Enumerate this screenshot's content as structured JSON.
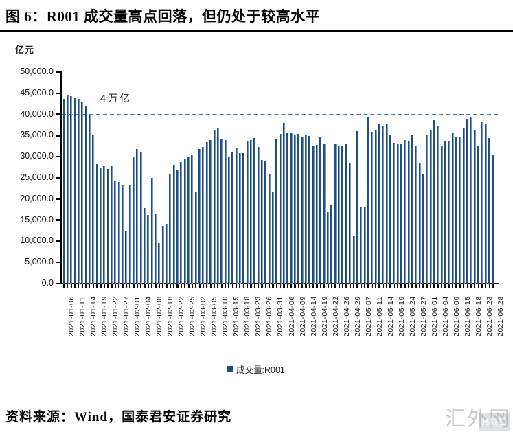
{
  "title": "图 6：R001 成交量高点回落，但仍处于较高水平",
  "footer": {
    "source": "资料来源：Wind，国泰君安证券研究"
  },
  "watermark": {
    "text": "汇外网",
    "logo_text": "格隆汇"
  },
  "legend": {
    "label": "成交量:R001"
  },
  "chart_data": {
    "type": "bar",
    "title": "R001 成交量高点回落，但仍处于较高水平",
    "unit_label": "亿元",
    "ylabel": "亿元",
    "xlabel": "",
    "ylim": [
      0,
      50000
    ],
    "ytick_step": 5000,
    "ytick_labels": [
      "0.0",
      "5,000.0",
      "10,000.0",
      "15,000.0",
      "20,000.0",
      "25,000.0",
      "30,000.0",
      "35,000.0",
      "40,000.0",
      "45,000.0",
      "50,000.0"
    ],
    "grid": false,
    "legend_position": "bottom",
    "bar_color": "#1F4E79",
    "reference_line": {
      "value": 40000,
      "label": "4万亿",
      "style": "dashed",
      "color": "#4A74A8"
    },
    "label_every_n_bars": 3,
    "x_labels": [
      "2021-01-06",
      "2021-01-11",
      "2021-01-14",
      "2021-01-19",
      "2021-01-22",
      "2021-01-27",
      "2021-02-01",
      "2021-02-04",
      "2021-02-08",
      "2021-02-18",
      "2021-02-22",
      "2021-02-25",
      "2021-03-02",
      "2021-03-05",
      "2021-03-10",
      "2021-03-15",
      "2021-03-18",
      "2021-03-23",
      "2021-03-26",
      "2021-03-31",
      "2021-04-06",
      "2021-04-09",
      "2021-04-14",
      "2021-04-19",
      "2021-04-22",
      "2021-04-26",
      "2021-04-29",
      "2021-05-07",
      "2021-05-11",
      "2021-05-14",
      "2021-05-19",
      "2021-05-24",
      "2021-05-27",
      "2021-06-01",
      "2021-06-04",
      "2021-06-09",
      "2021-06-15",
      "2021-06-18",
      "2021-06-23",
      "2021-06-28"
    ],
    "series": [
      {
        "name": "成交量:R001",
        "values": [
          43600,
          44700,
          44300,
          44000,
          43600,
          42800,
          42100,
          39800,
          35100,
          28200,
          27400,
          27800,
          27100,
          27800,
          24300,
          24000,
          23200,
          12500,
          23300,
          30100,
          31800,
          31200,
          17900,
          16300,
          25000,
          16400,
          9500,
          13700,
          14200,
          25800,
          27900,
          27000,
          28700,
          29500,
          29900,
          30500,
          21600,
          31800,
          32300,
          33400,
          34000,
          36300,
          36800,
          34300,
          34000,
          29800,
          31000,
          32000,
          30900,
          30800,
          33800,
          34000,
          34400,
          32300,
          29200,
          28900,
          25800,
          21600,
          34300,
          35400,
          38000,
          35500,
          35700,
          35100,
          35400,
          34800,
          35000,
          34900,
          32600,
          32800,
          34700,
          33000,
          17100,
          18600,
          33200,
          32700,
          32600,
          33000,
          28400,
          11200,
          36000,
          18200,
          18100,
          39400,
          35900,
          36300,
          37600,
          37400,
          37800,
          35300,
          33300,
          33200,
          33100,
          34000,
          33800,
          35100,
          32600,
          28400,
          25800,
          35300,
          36300,
          38700,
          37200,
          32700,
          33800,
          33600,
          35500,
          34800,
          34600,
          36700,
          38900,
          39500,
          36300,
          32500,
          38200,
          37700,
          34400,
          30500
        ]
      }
    ]
  }
}
